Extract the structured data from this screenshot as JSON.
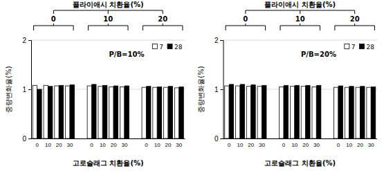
{
  "chart_data": [
    {
      "type": "bar",
      "title": "P/B=10%",
      "group_label": "플라이애시 치환율(%)",
      "groups": [
        "0",
        "10",
        "20"
      ],
      "x_label": "고로슬래그 치환율(%)",
      "y_label": "중량변화율(%)",
      "categories": [
        "0",
        "10",
        "20",
        "30",
        "0",
        "10",
        "20",
        "30",
        "0",
        "10",
        "20",
        "30"
      ],
      "series": [
        {
          "name": "7",
          "color": "#ffffff",
          "values": [
            1.08,
            1.08,
            1.07,
            1.07,
            1.07,
            1.06,
            1.05,
            1.05,
            1.04,
            1.04,
            1.04,
            1.03
          ]
        },
        {
          "name": "28",
          "color": "#000000",
          "values": [
            1.0,
            1.06,
            1.08,
            1.09,
            1.1,
            1.08,
            1.07,
            1.07,
            1.06,
            1.05,
            1.06,
            1.05
          ]
        }
      ],
      "ylim": [
        0,
        2
      ],
      "yticks": [
        0,
        1,
        2
      ],
      "grid": true,
      "legend": "top-right"
    },
    {
      "type": "bar",
      "title": "P/B=20%",
      "group_label": "플라이애시 치환율(%)",
      "groups": [
        "0",
        "10",
        "20"
      ],
      "x_label": "고로슬래그 치환율(%)",
      "y_label": "중량변화율(%)",
      "categories": [
        "0",
        "10",
        "20",
        "30",
        "0",
        "10",
        "20",
        "30",
        "0",
        "10",
        "20",
        "30"
      ],
      "series": [
        {
          "name": "7",
          "color": "#ffffff",
          "values": [
            1.07,
            1.07,
            1.06,
            1.06,
            1.05,
            1.06,
            1.06,
            1.05,
            1.04,
            1.04,
            1.04,
            1.04
          ]
        },
        {
          "name": "28",
          "color": "#000000",
          "values": [
            1.1,
            1.1,
            1.09,
            1.08,
            1.08,
            1.08,
            1.08,
            1.08,
            1.07,
            1.06,
            1.06,
            1.05
          ]
        }
      ],
      "ylim": [
        0,
        2
      ],
      "yticks": [
        0,
        1,
        2
      ],
      "grid": true,
      "legend": "top-right"
    }
  ]
}
